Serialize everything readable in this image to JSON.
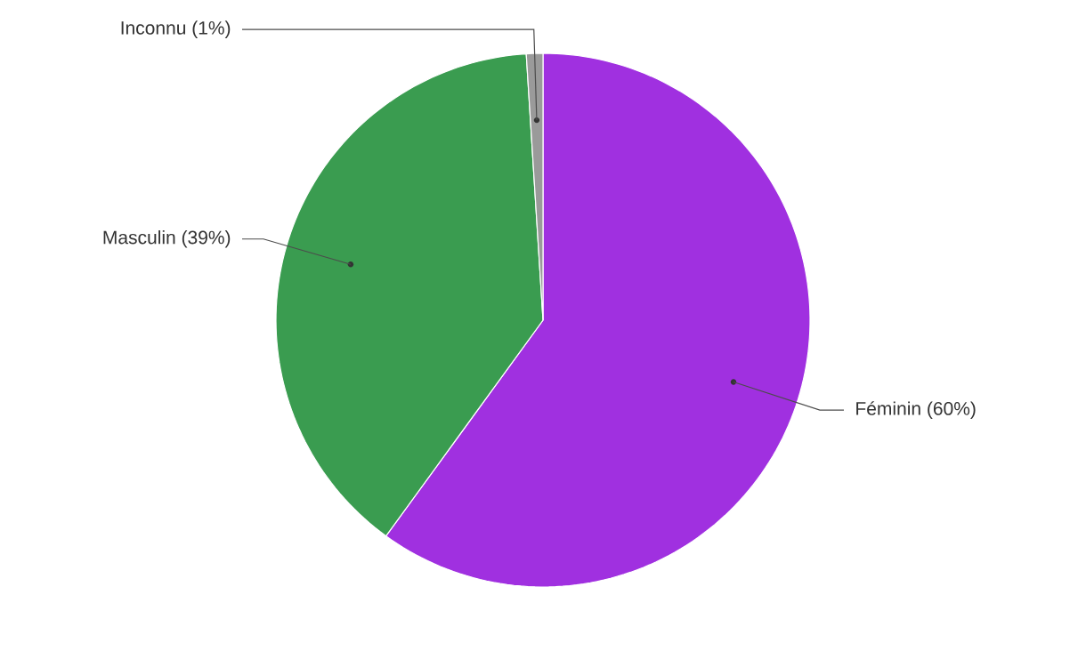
{
  "chart_data": {
    "type": "pie",
    "categories": [
      "Féminin (60%)",
      "Masculin (39%)",
      "Inconnu (1%)"
    ],
    "values": [
      60,
      39,
      1
    ],
    "colors": [
      "#a030e0",
      "#3a9c50",
      "#9a9a9a"
    ]
  }
}
